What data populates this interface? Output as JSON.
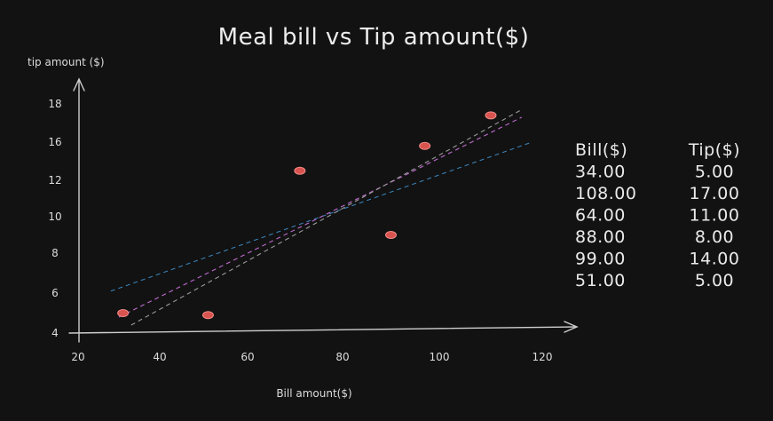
{
  "chart_data": {
    "type": "scatter",
    "title": "Meal bill vs Tip amount($)",
    "xlabel": "Bill amount($)",
    "ylabel": "tip amount ($)",
    "x_ticks": [
      "20",
      "40",
      "60",
      "80",
      "100",
      "120"
    ],
    "y_ticks": [
      "4",
      "6",
      "8",
      "10",
      "12",
      "16",
      "18"
    ],
    "series": [
      {
        "points": [
          {
            "x": 31,
            "y": 5.0
          },
          {
            "x": 51,
            "y": 4.9
          },
          {
            "x": 71,
            "y": 13.0
          },
          {
            "x": 90,
            "y": 9.0
          },
          {
            "x": 97,
            "y": 15.6
          },
          {
            "x": 110,
            "y": 17.4
          }
        ],
        "color": "#d9534f"
      }
    ],
    "trend_lines": [
      {
        "color": "#3a82b8",
        "x0": 28,
        "y0": 6.1,
        "x1": 118,
        "y1": 16.0
      },
      {
        "color": "#c06cd0",
        "x0": 30,
        "y0": 4.8,
        "x1": 116,
        "y1": 17.3
      },
      {
        "color": "#9a9a9a",
        "x0": 33,
        "y0": 4.4,
        "x1": 116,
        "y1": 17.7
      }
    ],
    "grid": false,
    "legend": "none",
    "table": {
      "headers": [
        "Bill($)",
        "Tip($)"
      ],
      "rows": [
        [
          "34.00",
          "5.00"
        ],
        [
          "108.00",
          "17.00"
        ],
        [
          "64.00",
          "11.00"
        ],
        [
          "88.00",
          "8.00"
        ],
        [
          "99.00",
          "14.00"
        ],
        [
          "51.00",
          "5.00"
        ]
      ]
    }
  }
}
